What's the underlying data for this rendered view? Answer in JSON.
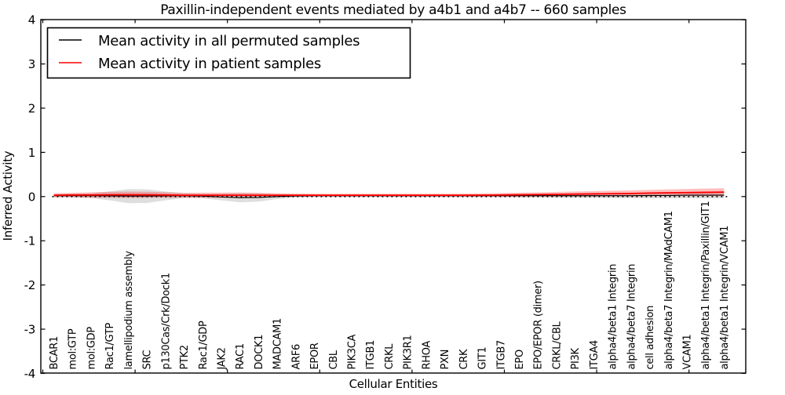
{
  "chart_data": {
    "type": "line",
    "title": "Paxillin-independent events mediated by a4b1 and a4b7 -- 660 samples",
    "xlabel": "Cellular Entities",
    "ylabel": "Inferred Activity",
    "ylim": [
      -4,
      4
    ],
    "yticks": [
      -4,
      -3,
      -2,
      -1,
      0,
      1,
      2,
      3,
      4
    ],
    "grid": false,
    "legend_position": "upper left",
    "zero_line": {
      "value": 0,
      "style": "dotted",
      "color": "#000000"
    },
    "categories": [
      "BCAR1",
      "mol:GTP",
      "mol:GDP",
      "Rac1/GTP",
      "lamellipodium assembly",
      "SRC",
      "p130Cas/Crk/Dock1",
      "PTK2",
      "Rac1/GDP",
      "JAK2",
      "RAC1",
      "DOCK1",
      "MADCAM1",
      "ARF6",
      "EPOR",
      "CBL",
      "PIK3CA",
      "ITGB1",
      "CRKL",
      "PIK3R1",
      "RHOA",
      "PXN",
      "CRK",
      "GIT1",
      "ITGB7",
      "EPO",
      "EPO/EPOR (dimer)",
      "CRKL/CBL",
      "PI3K",
      "ITGA4",
      "alpha4/beta1 Integrin",
      "alpha4/beta7 Integrin",
      "cell adhesion",
      "alpha4/beta7 Integrin/MAdCAM1",
      "VCAM1",
      "alpha4/beta1 Integrin/Paxillin/GIT1",
      "alpha4/beta1 Integrin/VCAM1"
    ],
    "legend": [
      {
        "label": "Mean activity in all permuted samples",
        "color": "#000000"
      },
      {
        "label": "Mean activity in patient samples",
        "color": "#ff0000"
      }
    ],
    "series": [
      {
        "name": "Mean activity in all permuted samples",
        "color": "#000000",
        "band_color": "#999999",
        "values": [
          0.02,
          0.02,
          0.02,
          0.015,
          0.01,
          0.01,
          0.015,
          0.02,
          0.01,
          -0.01,
          -0.025,
          -0.02,
          0.0,
          0.015,
          0.02,
          0.02,
          0.02,
          0.02,
          0.02,
          0.02,
          0.02,
          0.02,
          0.02,
          0.02,
          0.02,
          0.02,
          0.02,
          0.02,
          0.02,
          0.02,
          0.02,
          0.02,
          0.025,
          0.025,
          0.03,
          0.03,
          0.03
        ],
        "band_halfwidth": [
          0.035,
          0.04,
          0.055,
          0.1,
          0.16,
          0.155,
          0.1,
          0.055,
          0.05,
          0.075,
          0.105,
          0.095,
          0.055,
          0.035,
          0.028,
          0.025,
          0.025,
          0.025,
          0.025,
          0.025,
          0.025,
          0.025,
          0.027,
          0.03,
          0.033,
          0.036,
          0.04,
          0.045,
          0.048,
          0.05,
          0.053,
          0.056,
          0.06,
          0.063,
          0.066,
          0.068,
          0.07
        ]
      },
      {
        "name": "Mean activity in patient samples",
        "color": "#ff0000",
        "band_color": "#ff9999",
        "values": [
          0.03,
          0.035,
          0.035,
          0.04,
          0.04,
          0.04,
          0.035,
          0.03,
          0.03,
          0.03,
          0.03,
          0.03,
          0.03,
          0.03,
          0.03,
          0.03,
          0.03,
          0.03,
          0.03,
          0.03,
          0.03,
          0.03,
          0.03,
          0.032,
          0.035,
          0.04,
          0.045,
          0.05,
          0.055,
          0.06,
          0.065,
          0.07,
          0.078,
          0.085,
          0.09,
          0.095,
          0.1
        ],
        "band_halfwidth": [
          0.045,
          0.05,
          0.06,
          0.068,
          0.072,
          0.07,
          0.062,
          0.056,
          0.058,
          0.06,
          0.06,
          0.055,
          0.045,
          0.038,
          0.035,
          0.035,
          0.035,
          0.035,
          0.035,
          0.035,
          0.035,
          0.036,
          0.038,
          0.04,
          0.043,
          0.047,
          0.05,
          0.054,
          0.058,
          0.062,
          0.066,
          0.07,
          0.074,
          0.078,
          0.082,
          0.086,
          0.09
        ]
      }
    ]
  }
}
